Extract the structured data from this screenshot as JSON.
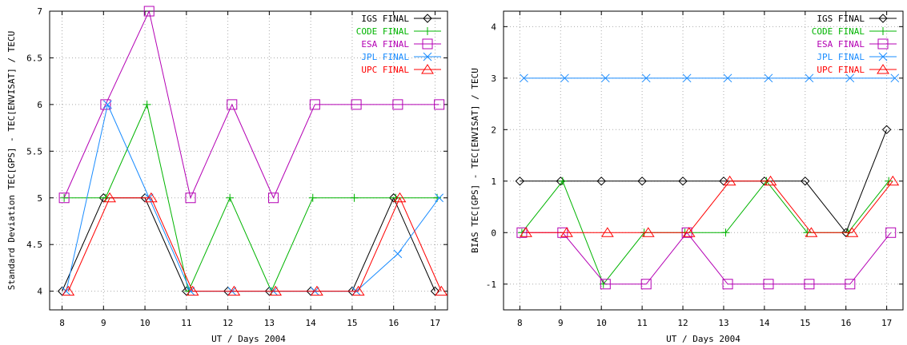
{
  "chart_data": [
    {
      "type": "line",
      "xlabel": "UT / Days 2004",
      "ylabel": "Standard Deviation TEC[GPS] - TEC[ENVISAT] / TECU",
      "xlim": [
        7.7,
        17.3
      ],
      "ylim": [
        3.8,
        7.0
      ],
      "xticks": [
        8,
        9,
        10,
        11,
        12,
        13,
        14,
        15,
        16,
        17
      ],
      "yticks": [
        4,
        4.5,
        5,
        5.5,
        6,
        6.5,
        7
      ],
      "ytick_labels": [
        "4",
        "4.5",
        "5",
        "5.5",
        "6",
        "6.5",
        "7"
      ],
      "grid": true,
      "legend_position": "top-right",
      "series": [
        {
          "name": "IGS FINAL",
          "color": "#000000",
          "marker": "diamond",
          "x": [
            8.0,
            9.0,
            10.0,
            11.0,
            12.0,
            13.0,
            14.0,
            15.0,
            16.0,
            17.0
          ],
          "y": [
            4,
            5,
            5,
            4,
            4,
            4,
            4,
            4,
            5,
            4
          ]
        },
        {
          "name": "CODE FINAL",
          "color": "#00b400",
          "marker": "plus",
          "x": [
            8.05,
            9.05,
            10.05,
            11.05,
            12.05,
            13.05,
            14.05,
            15.05,
            16.05,
            17.05
          ],
          "y": [
            5,
            5,
            6,
            4,
            5,
            4,
            5,
            5,
            5,
            5
          ]
        },
        {
          "name": "ESA FINAL",
          "color": "#b400b4",
          "marker": "square",
          "x": [
            8.05,
            9.05,
            10.1,
            11.1,
            12.1,
            13.1,
            14.1,
            15.1,
            16.1,
            17.1
          ],
          "y": [
            5,
            6,
            7,
            5,
            6,
            5,
            6,
            6,
            6,
            6
          ]
        },
        {
          "name": "JPL FINAL",
          "color": "#1a8cff",
          "marker": "x",
          "x": [
            8.1,
            9.1,
            10.1,
            11.1,
            12.1,
            13.1,
            14.1,
            15.1,
            16.1,
            17.1
          ],
          "y": [
            4,
            6,
            5,
            4,
            4,
            4,
            4,
            4,
            4.4,
            5
          ]
        },
        {
          "name": "UPC FINAL",
          "color": "#ff0000",
          "marker": "triangle",
          "x": [
            8.15,
            9.15,
            10.15,
            11.15,
            12.15,
            13.15,
            14.15,
            15.15,
            16.15,
            17.15
          ],
          "y": [
            4,
            5,
            5,
            4,
            4,
            4,
            4,
            4,
            5,
            4
          ]
        }
      ]
    },
    {
      "type": "line",
      "xlabel": "UT / Days 2004",
      "ylabel": "BIAS TEC[GPS] - TEC[ENVISAT] / TECU",
      "xlim": [
        7.6,
        17.4
      ],
      "ylim": [
        -1.5,
        4.3
      ],
      "xticks": [
        8,
        9,
        10,
        11,
        12,
        13,
        14,
        15,
        16,
        17
      ],
      "yticks": [
        -1,
        0,
        1,
        2,
        3,
        4
      ],
      "ytick_labels": [
        "-1",
        "0",
        "1",
        "2",
        "3",
        "4"
      ],
      "grid": true,
      "legend_position": "top-right",
      "series": [
        {
          "name": "IGS FINAL",
          "color": "#000000",
          "marker": "diamond",
          "x": [
            8.0,
            9.0,
            10.0,
            11.0,
            12.0,
            13.0,
            14.0,
            15.0,
            16.0,
            17.0
          ],
          "y": [
            1,
            1,
            1,
            1,
            1,
            1,
            1,
            1,
            0,
            2
          ]
        },
        {
          "name": "CODE FINAL",
          "color": "#00b400",
          "marker": "plus",
          "x": [
            8.05,
            9.05,
            10.05,
            11.05,
            12.05,
            13.05,
            14.05,
            15.05,
            16.05,
            17.05
          ],
          "y": [
            0,
            1,
            -1,
            0,
            0,
            0,
            1,
            0,
            0,
            1
          ]
        },
        {
          "name": "ESA FINAL",
          "color": "#b400b4",
          "marker": "square",
          "x": [
            8.05,
            9.05,
            10.1,
            11.1,
            12.1,
            13.1,
            14.1,
            15.1,
            16.1,
            17.1
          ],
          "y": [
            0,
            0,
            -1,
            -1,
            0,
            -1,
            -1,
            -1,
            -1,
            0
          ]
        },
        {
          "name": "JPL FINAL",
          "color": "#1a8cff",
          "marker": "x",
          "x": [
            8.1,
            9.1,
            10.1,
            11.1,
            12.1,
            13.1,
            14.1,
            15.1,
            16.1,
            17.2
          ],
          "y": [
            3,
            3,
            3,
            3,
            3,
            3,
            3,
            3,
            3,
            3
          ]
        },
        {
          "name": "UPC FINAL",
          "color": "#ff0000",
          "marker": "triangle",
          "x": [
            8.15,
            9.15,
            10.15,
            11.15,
            12.15,
            13.15,
            14.15,
            15.15,
            16.15,
            17.15
          ],
          "y": [
            0,
            0,
            0,
            0,
            0,
            1,
            1,
            0,
            0,
            1
          ]
        }
      ]
    }
  ]
}
